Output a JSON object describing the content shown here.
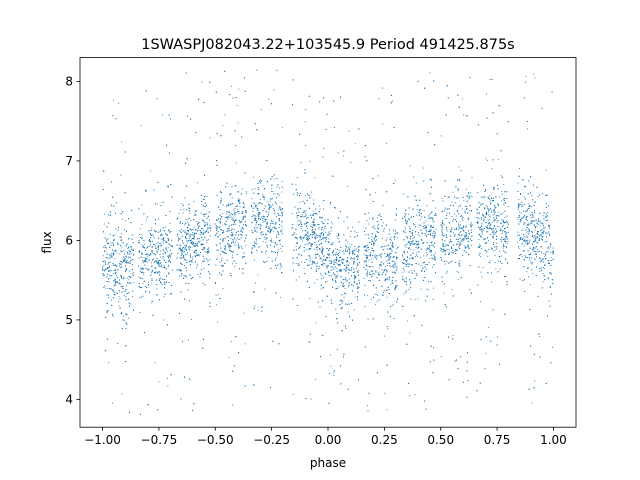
{
  "chart_data": {
    "type": "scatter",
    "title": "1SWASPJ082043.22+103545.9 Period 491425.875s",
    "xlabel": "phase",
    "ylabel": "flux",
    "xlim": [
      -1.1,
      1.1
    ],
    "ylim": [
      3.65,
      8.3
    ],
    "x_ticks": [
      -1.0,
      -0.75,
      -0.5,
      -0.25,
      0.0,
      0.25,
      0.5,
      0.75,
      1.0
    ],
    "x_tick_labels": [
      "−1.00",
      "−0.75",
      "−0.50",
      "−0.25",
      "0.00",
      "0.25",
      "0.50",
      "0.75",
      "1.00"
    ],
    "y_ticks": [
      4,
      5,
      6,
      7,
      8
    ],
    "y_tick_labels": [
      "4",
      "5",
      "6",
      "7",
      "8"
    ],
    "grid": false,
    "marker_color": "#1f77b4",
    "phase_profile": [
      {
        "phase": 0.0,
        "flux": 5.8
      },
      {
        "phase": 0.05,
        "flux": 5.65
      },
      {
        "phase": 0.1,
        "flux": 5.6
      },
      {
        "phase": 0.15,
        "flux": 5.75
      },
      {
        "phase": 0.2,
        "flux": 5.85
      },
      {
        "phase": 0.25,
        "flux": 5.8
      },
      {
        "phase": 0.3,
        "flux": 5.85
      },
      {
        "phase": 0.35,
        "flux": 5.95
      },
      {
        "phase": 0.4,
        "flux": 6.0
      },
      {
        "phase": 0.45,
        "flux": 6.05
      },
      {
        "phase": 0.5,
        "flux": 6.0
      },
      {
        "phase": 0.55,
        "flux": 6.05
      },
      {
        "phase": 0.6,
        "flux": 6.15
      },
      {
        "phase": 0.65,
        "flux": 6.2
      },
      {
        "phase": 0.7,
        "flux": 6.25
      },
      {
        "phase": 0.75,
        "flux": 6.2
      },
      {
        "phase": 0.8,
        "flux": 6.15
      },
      {
        "phase": 0.85,
        "flux": 6.1
      },
      {
        "phase": 0.9,
        "flux": 6.1
      },
      {
        "phase": 0.95,
        "flux": 6.0
      },
      {
        "phase": 1.0,
        "flux": 5.8
      }
    ],
    "gaps": [
      [
        0.14,
        0.16
      ],
      [
        0.31,
        0.33
      ],
      [
        0.48,
        0.5
      ],
      [
        0.64,
        0.66
      ],
      [
        0.8,
        0.84
      ]
    ]
  }
}
